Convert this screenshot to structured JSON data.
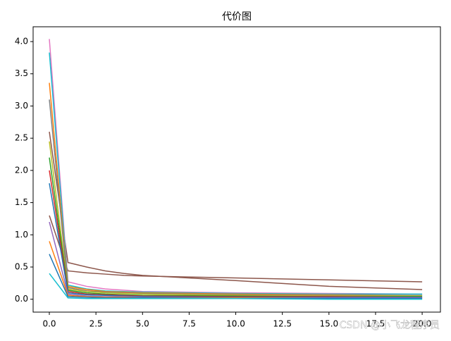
{
  "chart_data": {
    "type": "line",
    "title": "代价图",
    "annotation": "CSDN @小飞龙程序员",
    "x": [
      0,
      1,
      2,
      3,
      4,
      5,
      10,
      15,
      20
    ],
    "xlim": [
      -0.87,
      20.98
    ],
    "ylim": [
      -0.2,
      4.23
    ],
    "xticks": [
      {
        "value": 0,
        "label": "0.0"
      },
      2.5,
      {
        "value": 5,
        "label": "5.0"
      },
      7.5,
      {
        "value": 10,
        "label": "10.0"
      },
      12.5,
      {
        "value": 15,
        "label": "15.0"
      },
      17.5,
      {
        "value": 20,
        "label": "20.0"
      }
    ],
    "yticks": [
      {
        "value": 0,
        "label": "0.0"
      },
      0.5,
      {
        "value": 1,
        "label": "1.0"
      },
      1.5,
      {
        "value": 2,
        "label": "2.0"
      },
      2.5,
      {
        "value": 3,
        "label": "3.0"
      },
      3.5,
      {
        "value": 4,
        "label": "4.0"
      }
    ],
    "series": [
      {
        "color": "#8c564b",
        "values": [
          2.6,
          0.57,
          0.5,
          0.44,
          0.4,
          0.37,
          0.29,
          0.2,
          0.15
        ]
      },
      {
        "color": "#8c564b",
        "values": [
          1.3,
          0.44,
          0.41,
          0.39,
          0.37,
          0.36,
          0.33,
          0.3,
          0.27
        ]
      },
      {
        "color": "#e377c2",
        "values": [
          4.04,
          0.27,
          0.2,
          0.16,
          0.14,
          0.12,
          0.1,
          0.09,
          0.08
        ]
      },
      {
        "color": "#17becf",
        "values": [
          3.83,
          0.22,
          0.16,
          0.13,
          0.12,
          0.11,
          0.09,
          0.08,
          0.08
        ]
      },
      {
        "color": "#ff7f0e",
        "values": [
          3.36,
          0.2,
          0.15,
          0.12,
          0.11,
          0.1,
          0.08,
          0.07,
          0.06
        ]
      },
      {
        "color": "#7f7f7f",
        "values": [
          3.1,
          0.18,
          0.13,
          0.11,
          0.1,
          0.09,
          0.07,
          0.06,
          0.06
        ]
      },
      {
        "color": "#bcbd22",
        "values": [
          2.45,
          0.16,
          0.12,
          0.1,
          0.09,
          0.08,
          0.06,
          0.05,
          0.05
        ]
      },
      {
        "color": "#2ca02c",
        "values": [
          2.2,
          0.14,
          0.1,
          0.08,
          0.07,
          0.06,
          0.05,
          0.04,
          0.04
        ]
      },
      {
        "color": "#d62728",
        "values": [
          2.0,
          0.12,
          0.08,
          0.07,
          0.06,
          0.05,
          0.04,
          0.04,
          0.03
        ]
      },
      {
        "color": "#1f77b4",
        "values": [
          1.8,
          0.1,
          0.07,
          0.06,
          0.05,
          0.04,
          0.03,
          0.03,
          0.03
        ]
      },
      {
        "color": "#9467bd",
        "values": [
          1.2,
          0.08,
          0.05,
          0.04,
          0.04,
          0.03,
          0.02,
          0.02,
          0.02
        ]
      },
      {
        "color": "#ff7f0e",
        "values": [
          0.9,
          0.06,
          0.04,
          0.03,
          0.03,
          0.02,
          0.02,
          0.01,
          0.01
        ]
      },
      {
        "color": "#1f77b4",
        "values": [
          0.7,
          0.04,
          0.03,
          0.02,
          0.02,
          0.02,
          0.01,
          0.01,
          0.01
        ]
      },
      {
        "color": "#17becf",
        "values": [
          0.4,
          0.02,
          0.01,
          0.01,
          0.01,
          0.01,
          0.01,
          0.0,
          0.0
        ]
      }
    ]
  }
}
